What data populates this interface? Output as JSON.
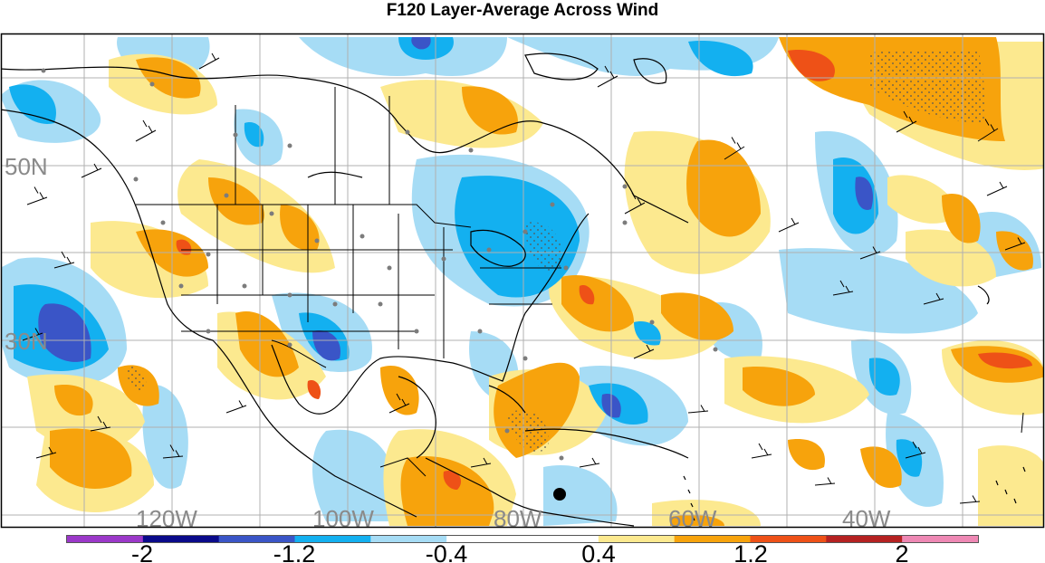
{
  "title": "F120 Layer-Average Across Wind",
  "map": {
    "lat_labels": [
      "50N",
      "30N"
    ],
    "lon_labels": [
      "120W",
      "100W",
      "80W",
      "60W",
      "40W"
    ]
  },
  "colorbar": {
    "tick_labels": [
      "-2",
      "-1.2",
      "-0.4",
      "0.4",
      "1.2",
      "2"
    ],
    "colors": [
      "#9b38c9",
      "#0a0a8a",
      "#3a55c7",
      "#13b0f0",
      "#a6dcf5",
      "#ffffff",
      "#ffffff",
      "#fce98f",
      "#f7a30c",
      "#ee5117",
      "#b52121",
      "#ee88b4"
    ]
  }
}
